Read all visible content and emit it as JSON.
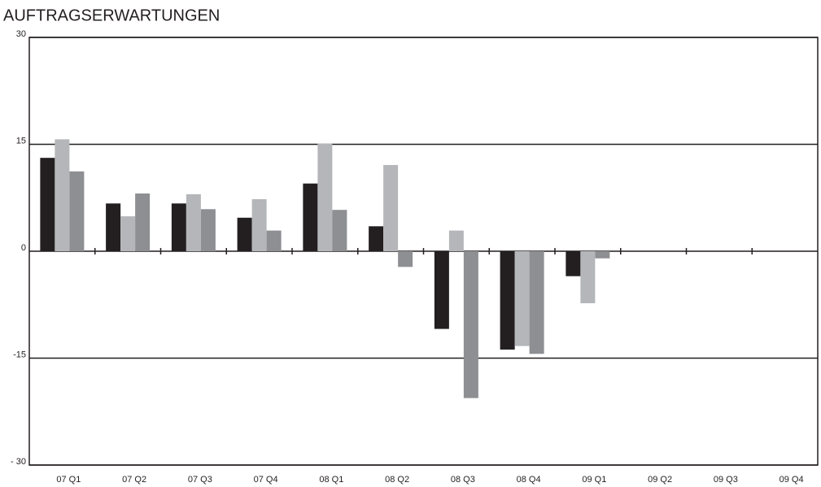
{
  "chart_data": {
    "type": "bar",
    "title": "AUFTRAGSERWARTUNGEN",
    "categories": [
      "07 Q1",
      "07 Q2",
      "07 Q3",
      "07 Q4",
      "08 Q1",
      "08 Q2",
      "08 Q3",
      "08 Q4",
      "09 Q1",
      "09 Q2",
      "09 Q3",
      "09 Q4"
    ],
    "series": [
      {
        "color": "#231f20",
        "values": [
          13.1,
          6.7,
          6.7,
          4.7,
          9.5,
          3.5,
          -10.9,
          -13.8,
          -3.5,
          null,
          null,
          null
        ]
      },
      {
        "color": "#b5b6b9",
        "values": [
          15.7,
          4.9,
          8.0,
          7.3,
          15.1,
          12.1,
          2.9,
          -13.3,
          -7.3,
          null,
          null,
          null
        ]
      },
      {
        "color": "#8e8f92",
        "values": [
          11.2,
          8.1,
          5.9,
          2.9,
          5.8,
          -2.2,
          -20.6,
          -14.4,
          -1.0,
          null,
          null,
          null
        ]
      }
    ],
    "ylim": [
      -30,
      30
    ],
    "yticks": [
      30,
      15,
      0,
      -15,
      {
        "value": -30,
        "label": "- 30"
      }
    ],
    "grid": true
  }
}
